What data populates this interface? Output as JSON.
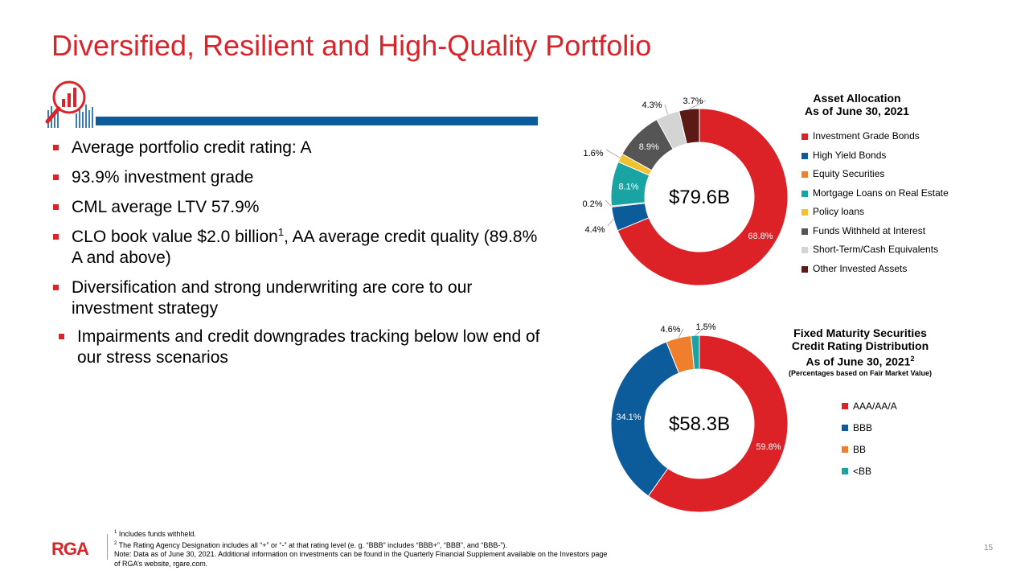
{
  "title": "Diversified, Resilient and High-Quality Portfolio",
  "bullets": [
    {
      "text": "Average portfolio credit rating:  A"
    },
    {
      "text": "93.9% investment grade"
    },
    {
      "text": "CML average LTV 57.9%"
    },
    {
      "text_pre": "CLO book value $2.0 billion",
      "sup": "1",
      "text_post": ", AA average credit quality (89.8% A and above)"
    },
    {
      "text": "Diversification and strong underwriting are core to our investment strategy"
    },
    {
      "text": "Impairments and credit downgrades tracking below low end of our stress scenarios"
    }
  ],
  "colors": {
    "accent_red": "#d9242a",
    "accent_blue": "#0c5c9c"
  },
  "icon": "magnifier-bar-chart-icon",
  "chart_data": [
    {
      "type": "pie",
      "title": "Asset Allocation",
      "subtitle": "As of June 30, 2021",
      "center_label": "$79.6B",
      "categories": [
        "Investment Grade Bonds",
        "High Yield Bonds",
        "Equity Securities",
        "Mortgage Loans on Real Estate",
        "Policy loans",
        "Funds Withheld at Interest",
        "Short-Term/Cash Equivalents",
        "Other Invested Assets"
      ],
      "values": [
        68.8,
        4.4,
        0.2,
        8.1,
        1.6,
        8.9,
        4.3,
        3.7
      ],
      "labels": [
        "68.8%",
        "4.4%",
        "0.2%",
        "8.1%",
        "1.6%",
        "8.9%",
        "4.3%",
        "3.7%"
      ],
      "colors": [
        "#dc2127",
        "#0c5c9c",
        "#ef7f2c",
        "#1aa3a3",
        "#f2c12e",
        "#555555",
        "#d4d4d4",
        "#5c1a16"
      ],
      "legend": "right"
    },
    {
      "type": "pie",
      "title": "Fixed Maturity Securities Credit Rating Distribution As of June 30, 2021",
      "title_sup": "2",
      "subtitle": "(Percentages based on Fair Market Value)",
      "center_label": "$58.3B",
      "categories": [
        "AAA/AA/A",
        "BBB",
        "BB",
        "<BB"
      ],
      "values": [
        59.8,
        34.1,
        4.6,
        1.5
      ],
      "labels": [
        "59.8%",
        "34.1%",
        "4.6%",
        "1.5%"
      ],
      "colors": [
        "#dc2127",
        "#0c5c9c",
        "#ef7f2c",
        "#1aa3a3"
      ],
      "legend": "right"
    }
  ],
  "footer": {
    "logo": "RGA",
    "note1_sup": "1",
    "note1": " Includes funds withheld.",
    "note2_sup": "2",
    "note2": " The Rating Agency Designation includes all “+” or “-” at that rating level (e. g. “BBB” includes “BBB+”, “BBB”, and “BBB-”).",
    "note3": "Note:  Data as of June 30, 2021.  Additional information on investments can be found in the Quarterly Financial Supplement available on the Investors page of RGA’s website, rgare.com.",
    "page_number": "15"
  }
}
